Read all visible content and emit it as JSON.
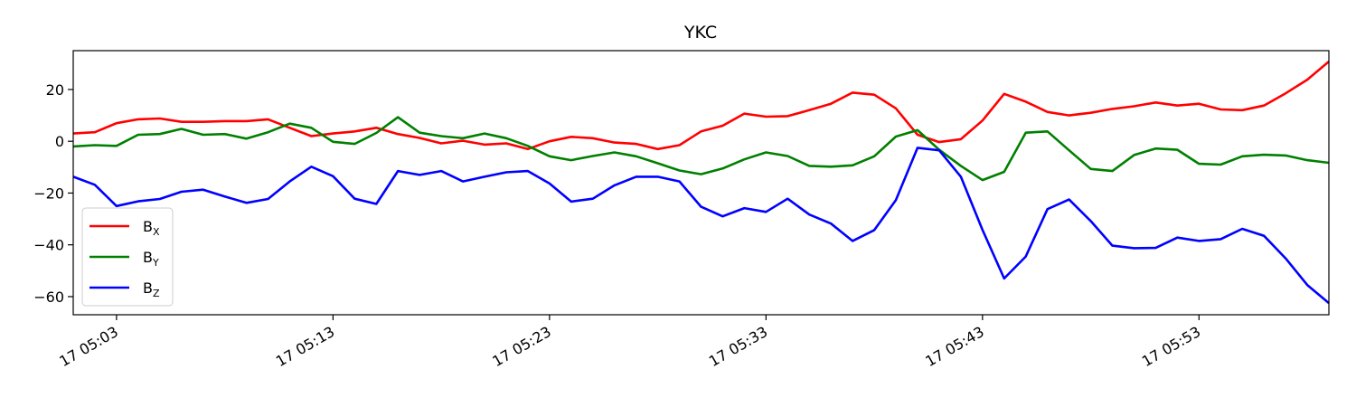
{
  "chart_data": {
    "type": "line",
    "title": "YKC",
    "xlabel": "",
    "ylabel": "",
    "x_ticks": [
      "17 05:03",
      "17 05:13",
      "17 05:23",
      "17 05:33",
      "17 05:43",
      "17 05:53"
    ],
    "x_tick_minutes": [
      3,
      13,
      23,
      33,
      43,
      53
    ],
    "xlim_minutes": [
      1,
      59
    ],
    "y_ticks": [
      20,
      0,
      -20,
      -40,
      -60
    ],
    "ylim": [
      -67,
      35
    ],
    "grid": false,
    "legend_position": "lower-left",
    "x_minutes": [
      1,
      2,
      3,
      4,
      5,
      6,
      7,
      8,
      9,
      10,
      11,
      12,
      13,
      14,
      15,
      16,
      17,
      18,
      19,
      20,
      21,
      22,
      23,
      24,
      25,
      26,
      27,
      28,
      29,
      30,
      31,
      32,
      33,
      34,
      35,
      36,
      37,
      38,
      39,
      40,
      41,
      42,
      43,
      44,
      45,
      46,
      47,
      48,
      49,
      50,
      51,
      52,
      53,
      54,
      55,
      56,
      57,
      58,
      59
    ],
    "series": [
      {
        "name": "BX",
        "label_main": "B",
        "label_sub": "X",
        "color": "#ff0000",
        "values": [
          3,
          3.5,
          7,
          8.5,
          8.8,
          7.5,
          7.5,
          7.8,
          7.8,
          8.5,
          5.2,
          2,
          3,
          3.8,
          5.2,
          2.8,
          1.3,
          -0.8,
          0.2,
          -1.3,
          -0.8,
          -3,
          0,
          1.7,
          1.2,
          -0.5,
          -1,
          -3,
          -1.5,
          3.8,
          6,
          10.7,
          9.5,
          9.7,
          12,
          14.5,
          18.8,
          18,
          12.7,
          2.5,
          -0.3,
          0.8,
          8,
          18.3,
          15.3,
          11.3,
          10,
          11,
          12.5,
          13.5,
          15,
          13.8,
          14.5,
          12.3,
          12,
          13.8,
          18.5,
          23.8,
          30.8
        ]
      },
      {
        "name": "BY",
        "label_main": "B",
        "label_sub": "Y",
        "color": "#008000",
        "values": [
          -2,
          -1.5,
          -1.8,
          2.5,
          2.8,
          4.8,
          2.5,
          2.8,
          1,
          3.5,
          6.8,
          5.2,
          -0.2,
          -1,
          3.2,
          9.3,
          3.3,
          2,
          1.2,
          3,
          1.2,
          -1.8,
          -5.8,
          -7.3,
          -5.7,
          -4.3,
          -5.8,
          -8.5,
          -11.3,
          -12.7,
          -10.5,
          -7,
          -4.3,
          -5.7,
          -9.5,
          -9.8,
          -9.3,
          -5.8,
          1.8,
          4.3,
          -3.3,
          -9.5,
          -15,
          -11.8,
          3.3,
          3.8,
          -3.5,
          -10.7,
          -11.5,
          -5.3,
          -2.8,
          -3.3,
          -8.7,
          -9,
          -5.8,
          -5.2,
          -5.5,
          -7.3,
          -8.3
        ]
      },
      {
        "name": "BZ",
        "label_main": "B",
        "label_sub": "Z",
        "color": "#0000ff",
        "values": [
          -13.7,
          -16.8,
          -25,
          -23.2,
          -22.3,
          -19.5,
          -18.7,
          -21.3,
          -23.8,
          -22.3,
          -15.5,
          -9.8,
          -13.5,
          -22.2,
          -24.2,
          -11.5,
          -13,
          -11.5,
          -15.5,
          -13.7,
          -12,
          -11.5,
          -16.3,
          -23.3,
          -22.2,
          -17,
          -13.7,
          -13.7,
          -15.5,
          -25.3,
          -29,
          -25.8,
          -27.3,
          -22.2,
          -28.3,
          -31.8,
          -38.5,
          -34.3,
          -22.7,
          -2.5,
          -3.5,
          -13.7,
          -34.2,
          -53,
          -44.5,
          -26.2,
          -22.5,
          -30.8,
          -40.3,
          -41.3,
          -41.2,
          -37.2,
          -38.5,
          -37.8,
          -33.8,
          -36.5,
          -45.2,
          -55.5,
          -62.5
        ]
      }
    ]
  }
}
